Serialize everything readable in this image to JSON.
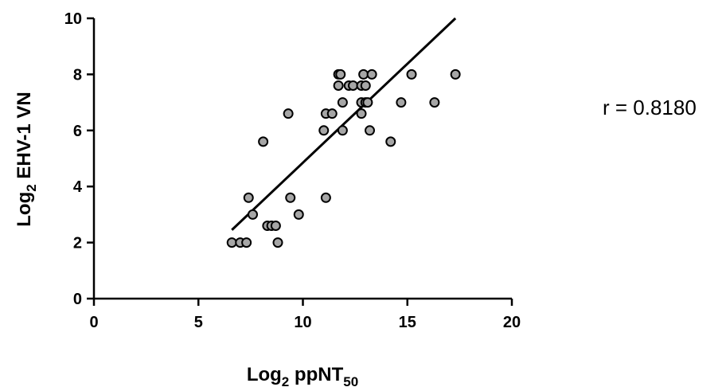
{
  "chart_data": {
    "type": "scatter",
    "xlabel": {
      "base": "Log",
      "sub": "2",
      "main": " ppNT",
      "sub2": "50"
    },
    "ylabel": {
      "base": "Log",
      "sub": "2",
      "main": " EHV-1 VN"
    },
    "xlim": [
      0,
      20
    ],
    "ylim": [
      0,
      10
    ],
    "xticks": [
      0,
      5,
      10,
      15,
      20
    ],
    "yticks": [
      0,
      2,
      4,
      6,
      8,
      10
    ],
    "grid": false,
    "annotation": "r = 0.8180",
    "regression_line": {
      "x": [
        6.6,
        17.3
      ],
      "y": [
        2.45,
        10.0
      ]
    },
    "marker_fill": "#a6a6a6",
    "marker_stroke": "#000000",
    "points": [
      {
        "x": 6.6,
        "y": 2.0
      },
      {
        "x": 7.0,
        "y": 2.0
      },
      {
        "x": 7.3,
        "y": 2.0
      },
      {
        "x": 8.8,
        "y": 2.0
      },
      {
        "x": 8.3,
        "y": 2.6
      },
      {
        "x": 8.5,
        "y": 2.6
      },
      {
        "x": 8.7,
        "y": 2.6
      },
      {
        "x": 7.6,
        "y": 3.0
      },
      {
        "x": 9.8,
        "y": 3.0
      },
      {
        "x": 7.4,
        "y": 3.6
      },
      {
        "x": 9.4,
        "y": 3.6
      },
      {
        "x": 11.1,
        "y": 3.6
      },
      {
        "x": 8.1,
        "y": 5.6
      },
      {
        "x": 14.2,
        "y": 5.6
      },
      {
        "x": 11.0,
        "y": 6.0
      },
      {
        "x": 11.9,
        "y": 6.0
      },
      {
        "x": 13.2,
        "y": 6.0
      },
      {
        "x": 9.3,
        "y": 6.6
      },
      {
        "x": 11.1,
        "y": 6.6
      },
      {
        "x": 11.4,
        "y": 6.6
      },
      {
        "x": 12.8,
        "y": 6.6
      },
      {
        "x": 11.9,
        "y": 7.0
      },
      {
        "x": 12.8,
        "y": 7.0
      },
      {
        "x": 13.0,
        "y": 7.0
      },
      {
        "x": 13.1,
        "y": 7.0
      },
      {
        "x": 14.7,
        "y": 7.0
      },
      {
        "x": 16.3,
        "y": 7.0
      },
      {
        "x": 11.7,
        "y": 7.6
      },
      {
        "x": 12.2,
        "y": 7.6
      },
      {
        "x": 12.4,
        "y": 7.6
      },
      {
        "x": 12.8,
        "y": 7.6
      },
      {
        "x": 13.0,
        "y": 7.6
      },
      {
        "x": 11.7,
        "y": 8.0
      },
      {
        "x": 11.8,
        "y": 8.0
      },
      {
        "x": 12.9,
        "y": 8.0
      },
      {
        "x": 13.3,
        "y": 8.0
      },
      {
        "x": 15.2,
        "y": 8.0
      },
      {
        "x": 17.3,
        "y": 8.0
      }
    ]
  }
}
